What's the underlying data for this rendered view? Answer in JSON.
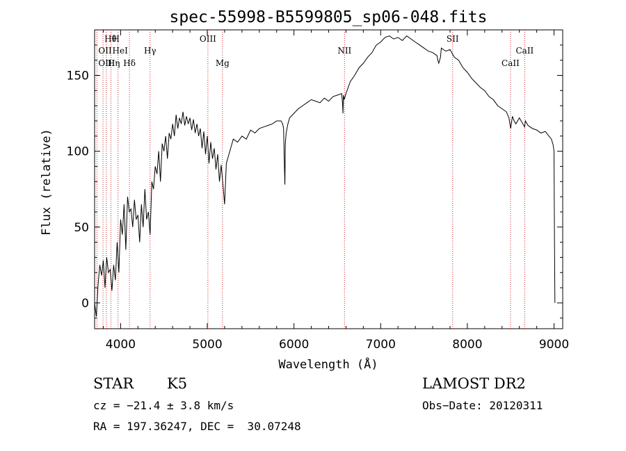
{
  "chart_data": {
    "type": "line",
    "title": "spec-55998-B5599805_sp06-048.fits",
    "xlabel": "Wavelength (Å)",
    "ylabel": "Flux (relative)",
    "xlim": [
      3700,
      9100
    ],
    "ylim": [
      -17,
      180
    ],
    "xticks": [
      4000,
      5000,
      6000,
      7000,
      8000,
      9000
    ],
    "yticks": [
      0,
      50,
      100,
      150
    ],
    "grid": false,
    "series": [
      {
        "line_color": "#000000",
        "x": [
          3700,
          3720,
          3740,
          3760,
          3780,
          3800,
          3820,
          3840,
          3860,
          3880,
          3900,
          3920,
          3940,
          3960,
          3980,
          4000,
          4020,
          4040,
          4060,
          4080,
          4100,
          4120,
          4140,
          4160,
          4180,
          4200,
          4220,
          4240,
          4260,
          4280,
          4300,
          4320,
          4340,
          4360,
          4380,
          4400,
          4420,
          4440,
          4460,
          4480,
          4500,
          4520,
          4540,
          4560,
          4580,
          4600,
          4620,
          4640,
          4660,
          4680,
          4700,
          4720,
          4740,
          4760,
          4780,
          4800,
          4820,
          4840,
          4860,
          4880,
          4900,
          4920,
          4940,
          4960,
          4980,
          5000,
          5020,
          5040,
          5060,
          5080,
          5100,
          5120,
          5140,
          5160,
          5180,
          5200,
          5220,
          5240,
          5260,
          5280,
          5300,
          5350,
          5400,
          5450,
          5500,
          5550,
          5600,
          5650,
          5700,
          5750,
          5800,
          5850,
          5870,
          5880,
          5890,
          5895,
          5900,
          5910,
          5930,
          5950,
          6000,
          6050,
          6100,
          6150,
          6200,
          6250,
          6300,
          6350,
          6400,
          6450,
          6500,
          6550,
          6560,
          6565,
          6570,
          6580,
          6600,
          6650,
          6700,
          6750,
          6800,
          6850,
          6900,
          6950,
          7000,
          7050,
          7100,
          7150,
          7200,
          7250,
          7300,
          7350,
          7400,
          7450,
          7500,
          7550,
          7600,
          7650,
          7660,
          7670,
          7690,
          7700,
          7750,
          7800,
          7850,
          7900,
          7950,
          8000,
          8050,
          8100,
          8150,
          8200,
          8250,
          8300,
          8350,
          8400,
          8450,
          8480,
          8500,
          8520,
          8540,
          8560,
          8600,
          8640,
          8660,
          8670,
          8700,
          8750,
          8800,
          8850,
          8900,
          8940,
          8970,
          8990,
          9000,
          9005,
          9010
        ],
        "y": [
          0,
          -9,
          12,
          25,
          18,
          28,
          10,
          30,
          20,
          22,
          8,
          25,
          15,
          40,
          20,
          55,
          45,
          65,
          35,
          70,
          60,
          62,
          50,
          68,
          55,
          58,
          40,
          65,
          50,
          75,
          55,
          60,
          45,
          80,
          75,
          90,
          85,
          100,
          80,
          105,
          100,
          110,
          95,
          112,
          108,
          118,
          110,
          124,
          115,
          122,
          118,
          126,
          117,
          123,
          118,
          122,
          114,
          121,
          112,
          118,
          110,
          115,
          102,
          113,
          98,
          110,
          92,
          106,
          95,
          102,
          88,
          98,
          80,
          91,
          78,
          65,
          92,
          96,
          100,
          104,
          108,
          106,
          110,
          108,
          114,
          112,
          115,
          116,
          117,
          118,
          120,
          120,
          118,
          115,
          90,
          78,
          105,
          112,
          118,
          122,
          125,
          128,
          130,
          132,
          134,
          133,
          132,
          135,
          133,
          136,
          137,
          138,
          132,
          125,
          137,
          134,
          138,
          146,
          150,
          155,
          158,
          162,
          165,
          170,
          172,
          175,
          176,
          174,
          175,
          173,
          176,
          174,
          172,
          170,
          168,
          166,
          165,
          163,
          160,
          158,
          162,
          168,
          166,
          167,
          162,
          160,
          155,
          152,
          148,
          145,
          142,
          140,
          136,
          134,
          130,
          128,
          126,
          122,
          115,
          123,
          120,
          118,
          122,
          118,
          116,
          120,
          117,
          115,
          114,
          112,
          113,
          110,
          108,
          104,
          100,
          40,
          0
        ]
      }
    ],
    "spectral_lines": [
      {
        "label": "Hθ",
        "x": 3797
      },
      {
        "label": "OII",
        "x": 3727
      },
      {
        "label": "OIII",
        "x": 3727
      },
      {
        "label": "Hη",
        "x": 3835
      },
      {
        "label": "H",
        "x": 3889
      },
      {
        "label": "HeI",
        "x": 3889
      },
      {
        "label": "Hδ",
        "x": 4102
      },
      {
        "label": "Hγ",
        "x": 4340
      },
      {
        "label": "OIII",
        "x": 5007
      },
      {
        "label": "Mg",
        "x": 5175
      },
      {
        "label": "NII",
        "x": 6583
      },
      {
        "label": "SII",
        "x": 7830
      },
      {
        "label": "CaII",
        "x": 8498
      },
      {
        "label": "CaII",
        "x": 8662
      }
    ],
    "extra_line_x": [
      3970
    ]
  },
  "info": {
    "object_class": "STAR",
    "subclass": "K5",
    "survey": "LAMOST DR2",
    "cz": "cz = −21.4 ± 3.8 km/s",
    "obs_date": "Obs−Date: 20120311",
    "coords": "RA = 197.36247, DEC =  30.07248"
  }
}
